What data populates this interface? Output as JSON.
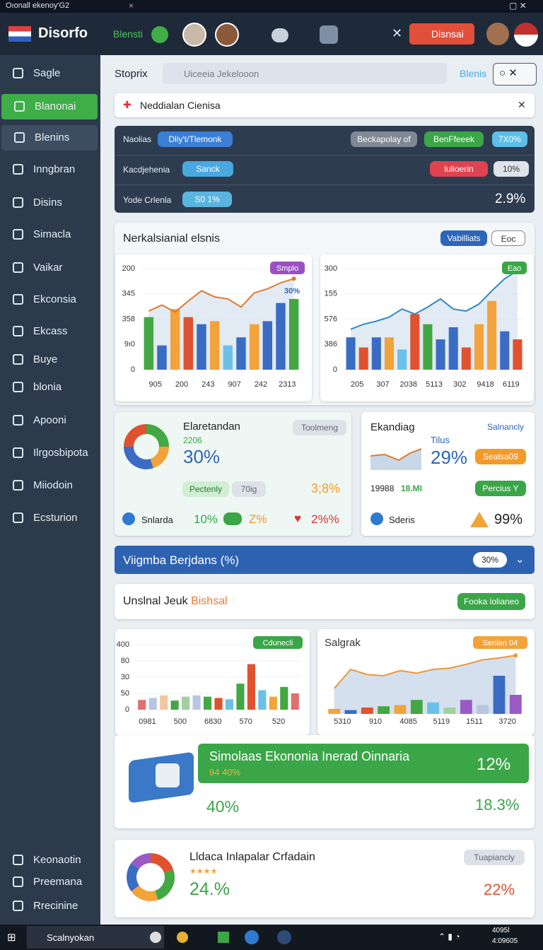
{
  "window_title": "Oıonall ekenoy'G2",
  "header": {
    "logo": "Disorfo",
    "tab": "Blensti",
    "button": "Disnsai"
  },
  "sidebar": {
    "items": [
      "Sagle",
      "Blanonai",
      "Blenins",
      "Inngbran",
      "Disins",
      "Simacla",
      "Vaikar",
      "Ekconsia",
      "Ekcass",
      "Buye",
      "blonia",
      "Apooni",
      "Ilrgosbipota",
      "Miiodoin",
      "Ecsturion"
    ],
    "bottom": [
      "Keonaotin",
      "Preemana",
      "Rrecinine"
    ]
  },
  "toolbar": {
    "title": "Stoprix",
    "search": "Uiceeia Jekelooon",
    "link": "Blenis"
  },
  "filter": {
    "label": "Neddialan Cienisa"
  },
  "table": {
    "rows": [
      [
        "Naolias",
        "Dliy't/Tlemonk",
        "Beckapolay of",
        "BenFfeeek",
        "7X0%"
      ],
      [
        "Kacdjehenia",
        "Sanck",
        "lulioerin",
        "10%"
      ],
      [
        "Yode Crlenla",
        "S0 1%",
        "2.9%"
      ]
    ]
  },
  "panel": {
    "title": "Nerkalsianial elsnis",
    "button": "Vabilliats",
    "button2": "Eoc"
  },
  "card_left": {
    "title": "Elaretandan",
    "badge": "Toolmeng",
    "sub": "2206",
    "value": "30%",
    "tag": "Pectenly",
    "tag2": "70ig",
    "side": "3;8%",
    "row": [
      "Snlarda",
      "10%",
      "Z%",
      "2%%"
    ]
  },
  "card_right": {
    "title": "Ekandiag",
    "link": "Salnancly",
    "sub": "Tilus",
    "value": "29%",
    "badge": "Sealsa09",
    "stat": "19988",
    "stat2": "18.MI",
    "button": "Percius Y",
    "row": [
      "Sderis",
      "99%"
    ]
  },
  "bluebar": {
    "title": "Viigmba Berjdans (%)",
    "value": "30%"
  },
  "section": {
    "title": "Unslnal Jeuk",
    "accent": "Bishsal",
    "button": "Fooka lolianeo"
  },
  "banner": {
    "title": "Simolaas Ekononia Inerad Oinnaria",
    "sub": "94 40%",
    "value": "12%",
    "left": "40%",
    "right": "18.3%"
  },
  "bottom_card": {
    "title": "Lldaca Inlapalar Crfadain",
    "badge": "Tuapiancly",
    "value": "24.%",
    "value2": "22%"
  },
  "taskbar": {
    "search": "Scalnyokan",
    "time": "4095l",
    "date": "4:09605"
  },
  "chart_data": [
    {
      "type": "bar",
      "badge": "Smplo",
      "annotation": "30%",
      "categories": [
        "905",
        null,
        "200",
        null,
        "243",
        null,
        "907",
        null,
        "242",
        null,
        "2313",
        null
      ],
      "values": [
        52,
        24,
        60,
        52,
        45,
        48,
        24,
        32,
        45,
        48,
        66,
        70
      ],
      "colors": [
        "#43a843",
        "#3b6cc4",
        "#f2a33a",
        "#e0522f",
        "#3b6cc4",
        "#f2a33a",
        "#6cc0e8",
        "#3b6cc4",
        "#f2a33a",
        "#3b6cc4",
        "#3b6cc4",
        "#43a843"
      ],
      "line": {
        "color": "#e07a2a",
        "values": [
          58,
          64,
          57,
          68,
          78,
          72,
          70,
          62,
          76,
          80,
          86,
          90
        ]
      },
      "ylim": [
        0,
        100
      ],
      "yticks": [
        0,
        {
          "value": 25,
          "label": "9ı0"
        },
        {
          "value": 50,
          "label": "358"
        },
        {
          "value": 75,
          "label": "345"
        },
        {
          "value": 100,
          "label": "200"
        }
      ]
    },
    {
      "type": "bar",
      "badge": "Eao",
      "categories": [
        "205",
        null,
        "307",
        null,
        "2038",
        null,
        "5113",
        null,
        "302",
        null,
        "9418",
        null,
        "6119",
        null
      ],
      "values": [
        32,
        22,
        32,
        32,
        20,
        55,
        45,
        30,
        42,
        22,
        45,
        68,
        38,
        30
      ],
      "colors": [
        "#3b6cc4",
        "#e0522f",
        "#3b6cc4",
        "#f2a33a",
        "#6cc0e8",
        "#e0522f",
        "#43a843",
        "#3b6cc4",
        "#3b6cc4",
        "#e0522f",
        "#f2a33a",
        "#f2a33a",
        "#3b6cc4",
        "#e0522f"
      ],
      "line": {
        "color": "#2f88c8",
        "values": [
          40,
          45,
          48,
          52,
          60,
          55,
          62,
          70,
          60,
          58,
          65,
          78,
          90,
          98
        ]
      },
      "ylim": [
        0,
        100
      ],
      "yticks": [
        0,
        {
          "value": 25,
          "label": "386"
        },
        {
          "value": 50,
          "label": "576"
        },
        {
          "value": 75,
          "label": "155"
        },
        {
          "value": 100,
          "label": "300"
        }
      ]
    },
    {
      "type": "bar",
      "badge": "Cdunecli",
      "categories": [
        "0981",
        null,
        null,
        "500",
        null,
        null,
        "6830",
        null,
        null,
        "570",
        null,
        null,
        "520",
        null,
        null
      ],
      "values": [
        15,
        18,
        22,
        14,
        20,
        22,
        20,
        18,
        16,
        40,
        70,
        30,
        20,
        35,
        25
      ],
      "colors": [
        "#e06f6f",
        "#b9c4e0",
        "#f2c7a0",
        "#43a843",
        "#9fd0a0",
        "#b9c4e0",
        "#43a843",
        "#e0522f",
        "#6cc0e8",
        "#43a843",
        "#e0522f",
        "#6cc0e8",
        "#f2a33a",
        "#43a843",
        "#e06f6f"
      ],
      "ylim": [
        0,
        100
      ],
      "yticks": [
        0,
        {
          "value": 25,
          "label": "50"
        },
        {
          "value": 50,
          "label": "30"
        },
        {
          "value": 75,
          "label": "80"
        },
        {
          "value": 100,
          "label": "400"
        }
      ]
    },
    {
      "type": "bar",
      "title": "Salgrak",
      "badge": "Senlen 04",
      "categories": [
        "5310",
        null,
        "910",
        null,
        "4085",
        null,
        "5119",
        null,
        "1511",
        null,
        "3720",
        null
      ],
      "values": [
        8,
        6,
        10,
        12,
        14,
        22,
        18,
        10,
        22,
        14,
        60,
        30
      ],
      "colors": [
        "#f2a33a",
        "#3b6cc4",
        "#e0522f",
        "#43a843",
        "#f2a33a",
        "#43a843",
        "#6cc0e8",
        "#9fd0a0",
        "#9b59c4",
        "#b9c4e0",
        "#3b6cc4",
        "#9b59c4"
      ],
      "line": {
        "color": "#e89a3a",
        "area_color": "#c9d8e8",
        "values": [
          40,
          70,
          62,
          60,
          68,
          64,
          70,
          72,
          78,
          85,
          88,
          92
        ]
      },
      "ylim": [
        0,
        100
      ]
    },
    {
      "type": "donut",
      "colors": [
        "#43a843",
        "#f2a33a",
        "#3b6cc4",
        "#e0522f"
      ],
      "values": [
        25,
        20,
        30,
        25
      ]
    },
    {
      "type": "donut",
      "colors": [
        "#e0522f",
        "#43a843",
        "#f2a33a",
        "#3b6cc4",
        "#9b59c4"
      ],
      "values": [
        20,
        25,
        20,
        20,
        15
      ]
    }
  ]
}
